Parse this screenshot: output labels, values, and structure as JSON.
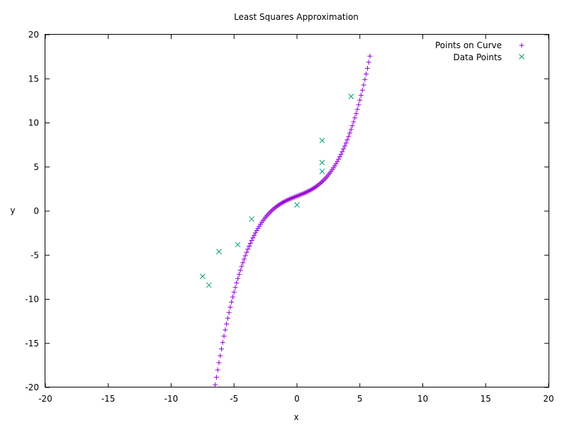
{
  "chart_data": {
    "type": "scatter",
    "title": "Least Squares Approximation",
    "xlabel": "x",
    "ylabel": "y",
    "xlim": [
      -20,
      20
    ],
    "ylim": [
      -20,
      20
    ],
    "x_ticks": [
      "-20",
      "-15",
      "-10",
      "-5",
      "0",
      "5",
      "10",
      "15",
      "20"
    ],
    "y_ticks": [
      "-20",
      "-15",
      "-10",
      "-5",
      "0",
      "5",
      "10",
      "15",
      "20"
    ],
    "grid": false,
    "legend_position": "top-right",
    "series": [
      {
        "name": "Points on Curve",
        "marker": "plus",
        "color": "#9400d3",
        "x_range": [
          -10.6,
          5.8
        ],
        "point_count": 165,
        "curve": "cubic",
        "coefficients": {
          "c0": 1.7,
          "c1": 0.56,
          "c2": 0.0,
          "c3": 0.0647
        }
      },
      {
        "name": "Data Points",
        "marker": "x",
        "color": "#009e73",
        "points": [
          [
            -7.5,
            -7.4
          ],
          [
            -7.0,
            -8.4
          ],
          [
            -6.2,
            -4.6
          ],
          [
            -4.7,
            -3.8
          ],
          [
            -3.6,
            -0.9
          ],
          [
            0.0,
            0.7
          ],
          [
            2.0,
            8.0
          ],
          [
            2.0,
            4.5
          ],
          [
            2.0,
            5.5
          ],
          [
            4.3,
            13.0
          ]
        ]
      }
    ]
  }
}
